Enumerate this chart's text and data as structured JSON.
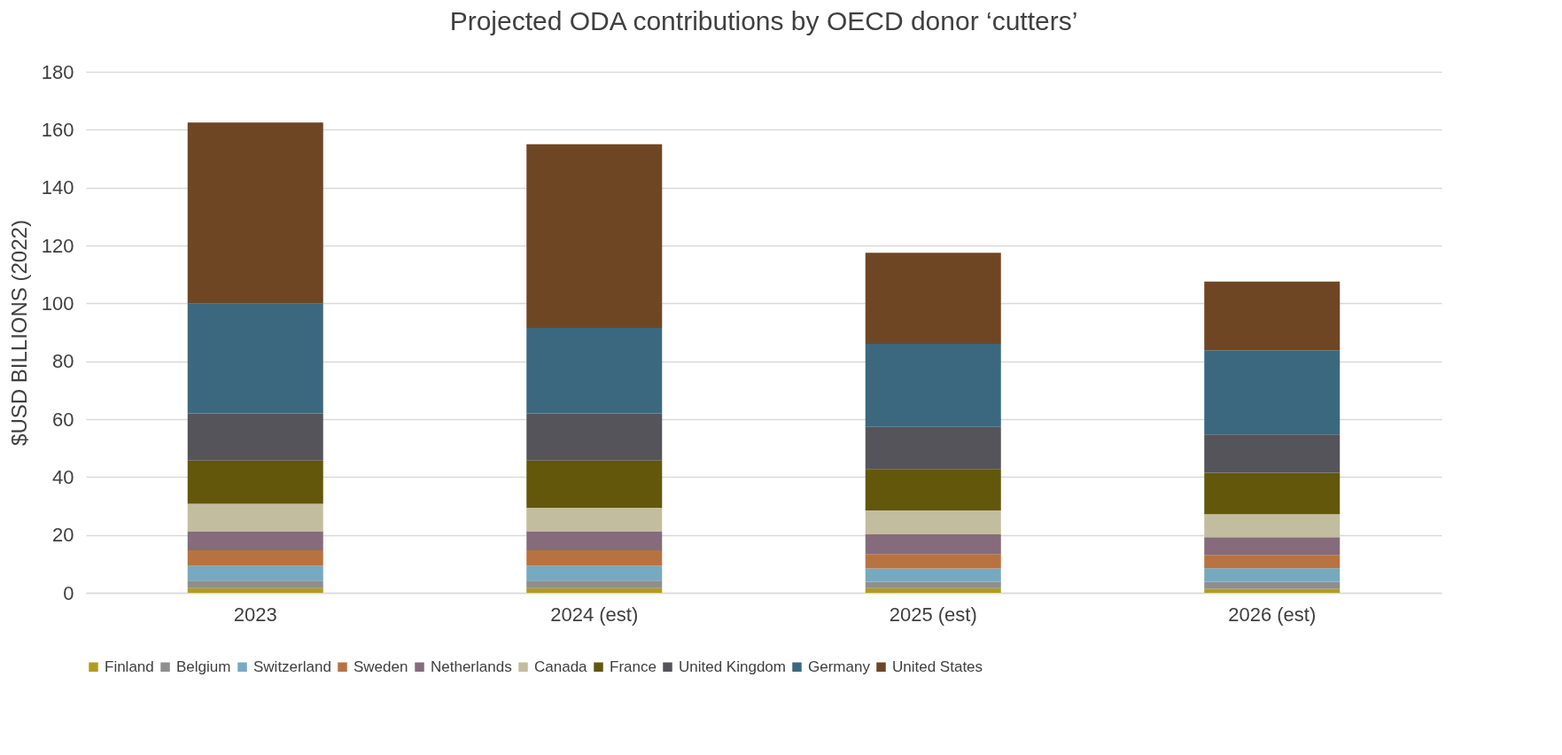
{
  "chart_data": {
    "type": "bar",
    "title": "Projected ODA contributions by OECD donor ‘cutters’",
    "ylabel": "$USD BILLIONS (2022)",
    "categories": [
      "2023",
      "2024 (est)",
      "2025 (est)",
      "2026 (est)"
    ],
    "stacked": true,
    "ylim": [
      0,
      180
    ],
    "yticks": [
      0,
      20,
      40,
      60,
      80,
      100,
      120,
      140,
      160,
      180
    ],
    "grid": "y",
    "legend": "bottom",
    "series": [
      {
        "name": "Finland",
        "color": "#b39b1d",
        "values": [
          1.6,
          1.6,
          1.6,
          1.4
        ]
      },
      {
        "name": "Belgium",
        "color": "#8e8e8e",
        "values": [
          2.6,
          2.6,
          2.2,
          2.4
        ]
      },
      {
        "name": "Switzerland",
        "color": "#76a9c0",
        "values": [
          5.1,
          5.1,
          4.6,
          4.7
        ]
      },
      {
        "name": "Sweden",
        "color": "#b87240",
        "values": [
          5.4,
          5.4,
          5.0,
          4.6
        ]
      },
      {
        "name": "Netherlands",
        "color": "#856b7b",
        "values": [
          6.6,
          6.6,
          6.8,
          6.1
        ]
      },
      {
        "name": "Canada",
        "color": "#c3bd9f",
        "values": [
          9.5,
          8.1,
          8.3,
          8.0
        ]
      },
      {
        "name": "France",
        "color": "#62570b",
        "values": [
          14.9,
          16.3,
          14.3,
          14.3
        ]
      },
      {
        "name": "United Kingdom",
        "color": "#55545a",
        "values": [
          16.3,
          16.3,
          14.5,
          13.2
        ]
      },
      {
        "name": "Germany",
        "color": "#3b687e",
        "values": [
          38.0,
          29.5,
          28.7,
          29.1
        ]
      },
      {
        "name": "United States",
        "color": "#6e4623",
        "values": [
          62.5,
          63.5,
          31.5,
          23.7
        ]
      }
    ]
  }
}
